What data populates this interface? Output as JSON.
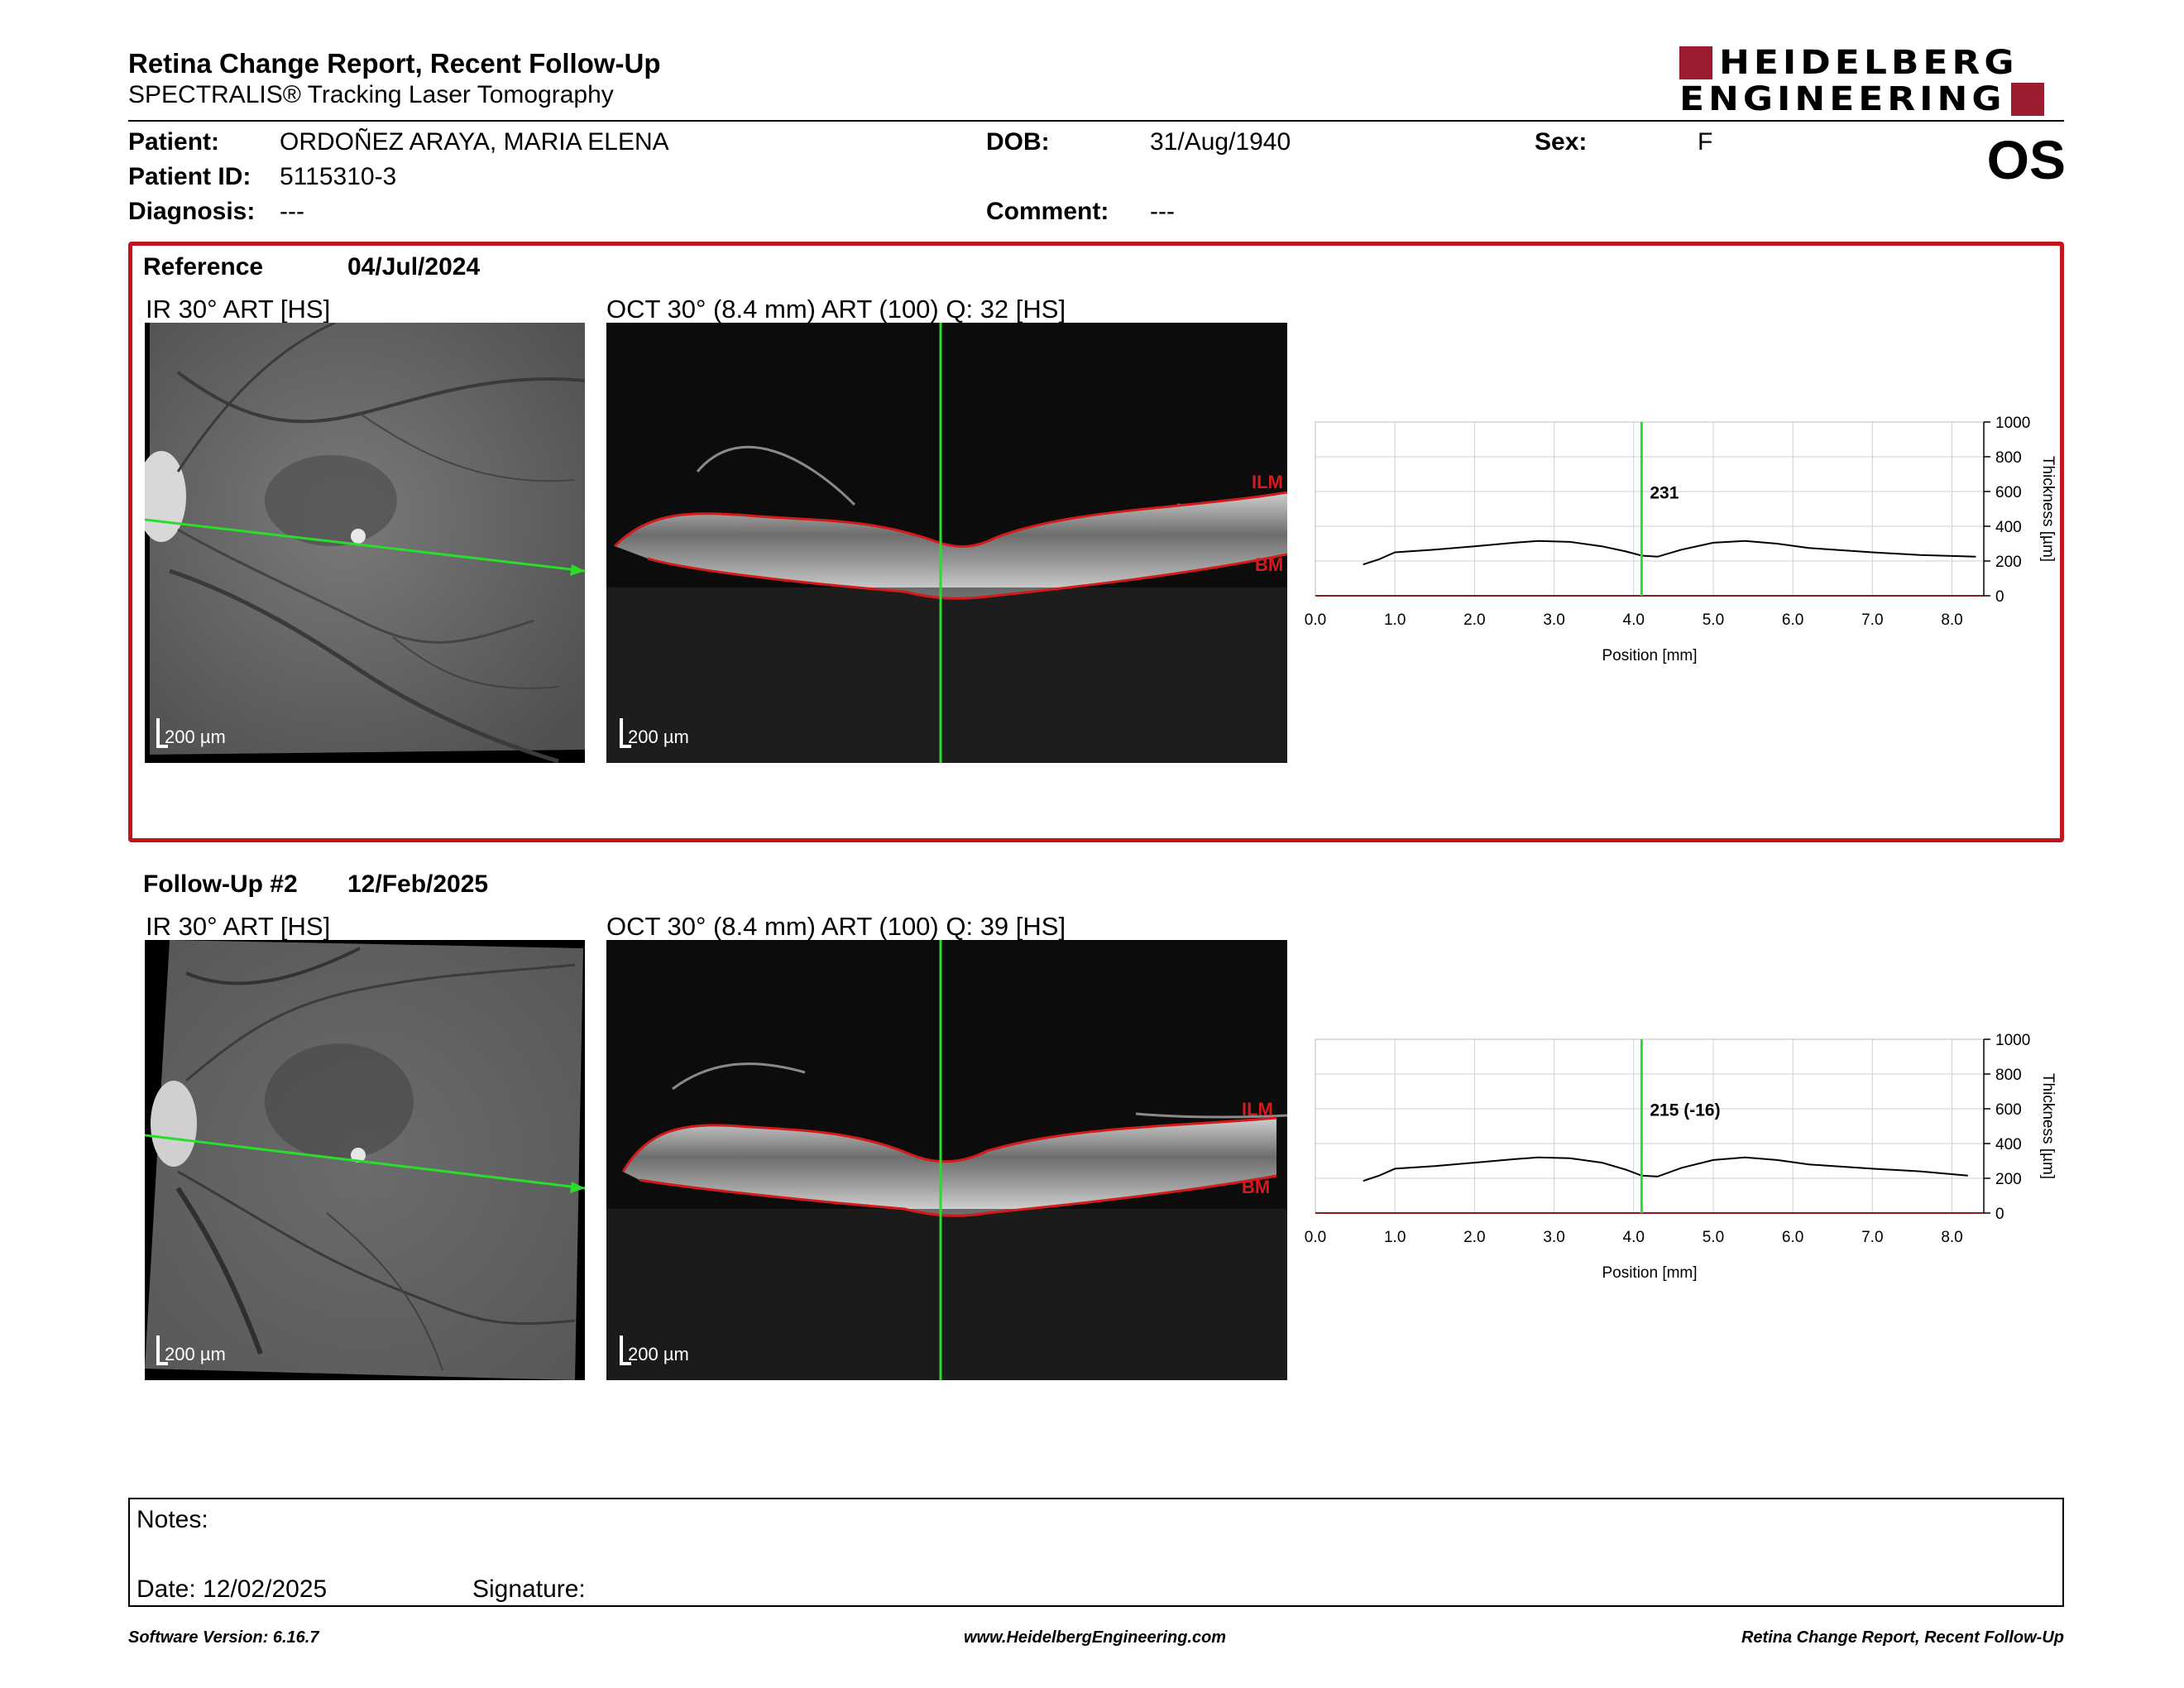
{
  "header": {
    "title": "Retina Change Report, Recent Follow-Up",
    "subtitle": "SPECTRALIS® Tracking Laser Tomography",
    "logo_line1": "HEIDELBERG",
    "logo_line2": "ENGINEERING",
    "eye": "OS"
  },
  "patient": {
    "patient_label": "Patient:",
    "patient_value": "ORDOÑEZ ARAYA, MARIA ELENA",
    "dob_label": "DOB:",
    "dob_value": "31/Aug/1940",
    "sex_label": "Sex:",
    "sex_value": "F",
    "id_label": "Patient ID:",
    "id_value": "5115310-3",
    "diagnosis_label": "Diagnosis:",
    "diagnosis_value": "---",
    "comment_label": "Comment:",
    "comment_value": "---"
  },
  "reference": {
    "label": "Reference",
    "date": "04/Jul/2024",
    "ir_title": "IR 30° ART [HS]",
    "oct_title": "OCT 30° (8.4 mm) ART (100) Q: 32 [HS]",
    "scale_ir": "200 µm",
    "scale_oct": "200 µm",
    "ilm": "ILM",
    "bm": "BM"
  },
  "followup": {
    "label": "Follow-Up #2",
    "date": "12/Feb/2025",
    "ir_title": "IR 30° ART [HS]",
    "oct_title": "OCT 30° (8.4 mm) ART (100) Q: 39 [HS]",
    "scale_ir": "200 µm",
    "scale_oct": "200 µm",
    "ilm": "ILM",
    "bm": "BM"
  },
  "chart_data": [
    {
      "type": "line",
      "title": "",
      "xlabel": "Position [mm]",
      "ylabel": "Thickness [µm]",
      "xlim": [
        0,
        8.4
      ],
      "ylim": [
        0,
        1000
      ],
      "xticks": [
        "0.0",
        "1.0",
        "2.0",
        "3.0",
        "4.0",
        "5.0",
        "6.0",
        "7.0",
        "8.0"
      ],
      "yticks": [
        "0",
        "200",
        "400",
        "600",
        "800",
        "1000"
      ],
      "marker_x": 4.1,
      "marker_label": "231",
      "grid": true,
      "series": [
        {
          "x": [
            0.6,
            0.8,
            1.0,
            1.5,
            2.0,
            2.5,
            2.8,
            3.2,
            3.6,
            3.9,
            4.1,
            4.3,
            4.6,
            5.0,
            5.4,
            5.8,
            6.2,
            7.0,
            7.6,
            8.3
          ],
          "values": [
            180,
            210,
            250,
            265,
            285,
            305,
            315,
            310,
            285,
            255,
            231,
            225,
            265,
            305,
            315,
            300,
            275,
            250,
            235,
            225
          ]
        }
      ]
    },
    {
      "type": "line",
      "title": "",
      "xlabel": "Position [mm]",
      "ylabel": "Thickness [µm]",
      "xlim": [
        0,
        8.4
      ],
      "ylim": [
        0,
        1000
      ],
      "xticks": [
        "0.0",
        "1.0",
        "2.0",
        "3.0",
        "4.0",
        "5.0",
        "6.0",
        "7.0",
        "8.0"
      ],
      "yticks": [
        "0",
        "200",
        "400",
        "600",
        "800",
        "1000"
      ],
      "marker_x": 4.1,
      "marker_label": "215 (-16)",
      "grid": true,
      "series": [
        {
          "x": [
            0.6,
            0.8,
            1.0,
            1.5,
            2.0,
            2.5,
            2.8,
            3.2,
            3.6,
            3.9,
            4.1,
            4.3,
            4.6,
            5.0,
            5.4,
            5.8,
            6.2,
            7.0,
            7.6,
            8.2
          ],
          "values": [
            185,
            215,
            255,
            270,
            290,
            310,
            320,
            315,
            290,
            250,
            215,
            210,
            260,
            305,
            320,
            305,
            280,
            255,
            240,
            215
          ]
        }
      ]
    }
  ],
  "notes": {
    "notes_label": "Notes:",
    "date_label": "Date: 12/02/2025",
    "signature_label": "Signature:"
  },
  "footer": {
    "software": "Software Version: 6.16.7",
    "website": "www.HeidelbergEngineering.com",
    "report_name": "Retina Change Report, Recent Follow-Up"
  }
}
